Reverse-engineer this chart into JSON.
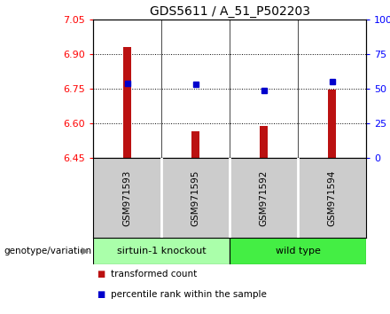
{
  "title": "GDS5611 / A_51_P502203",
  "samples": [
    "GSM971593",
    "GSM971595",
    "GSM971592",
    "GSM971594"
  ],
  "bar_values": [
    6.93,
    6.565,
    6.59,
    6.745
  ],
  "percentile_values": [
    54,
    53,
    49,
    55
  ],
  "y_min": 6.45,
  "y_max": 7.05,
  "y_ticks": [
    6.45,
    6.6,
    6.75,
    6.9,
    7.05
  ],
  "y2_ticks": [
    0,
    25,
    50,
    75,
    100
  ],
  "y2_labels": [
    "0",
    "25",
    "50",
    "75",
    "100%"
  ],
  "bar_color": "#bb1111",
  "square_color": "#0000cc",
  "bar_width": 0.12,
  "groups": [
    {
      "label": "sirtuin-1 knockout",
      "samples": [
        0,
        1
      ],
      "color": "#aaffaa"
    },
    {
      "label": "wild type",
      "samples": [
        2,
        3
      ],
      "color": "#44ee44"
    }
  ],
  "group_label": "genotype/variation",
  "legend_bar": "transformed count",
  "legend_square": "percentile rank within the sample",
  "title_fontsize": 10,
  "tick_fontsize": 8,
  "label_fontsize": 8,
  "background_color": "#ffffff",
  "plot_bg": "#ffffff",
  "sample_box_color": "#cccccc",
  "sample_divider_color": "#ffffff"
}
